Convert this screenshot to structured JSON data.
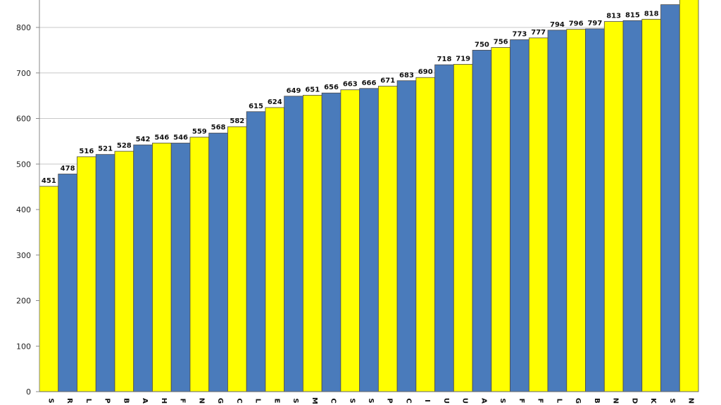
{
  "chart_data": {
    "type": "bar",
    "categories": [
      "S",
      "R",
      "L",
      "P",
      "B",
      "A",
      "H",
      "F",
      "N",
      "G",
      "C",
      "L",
      "E",
      "S",
      "M",
      "C",
      "S",
      "S",
      "P",
      "C",
      "I",
      "U",
      "U",
      "A",
      "S",
      "F",
      "F",
      "L",
      "G",
      "B",
      "N",
      "D",
      "K",
      "S",
      "N"
    ],
    "values": [
      451,
      478,
      516,
      521,
      528,
      542,
      546,
      546,
      559,
      568,
      582,
      615,
      624,
      649,
      651,
      656,
      663,
      666,
      671,
      683,
      690,
      718,
      719,
      750,
      756,
      773,
      777,
      794,
      796,
      797,
      813,
      815,
      818,
      850,
      870
    ],
    "data_labels": [
      "451",
      "478",
      "516",
      "521",
      "528",
      "542",
      "546",
      "546",
      "559",
      "568",
      "582",
      "615",
      "624",
      "649",
      "651",
      "656",
      "663",
      "666",
      "671",
      "683",
      "690",
      "718",
      "719",
      "750",
      "756",
      "773",
      "777",
      "794",
      "796",
      "797",
      "813",
      "815",
      "818",
      "",
      ""
    ],
    "y_ticks": [
      0,
      100,
      200,
      300,
      400,
      500,
      600,
      700,
      800
    ],
    "ylim": [
      0,
      860
    ],
    "grid": true,
    "colors": [
      "#ffff00",
      "#4a7bbb"
    ]
  }
}
